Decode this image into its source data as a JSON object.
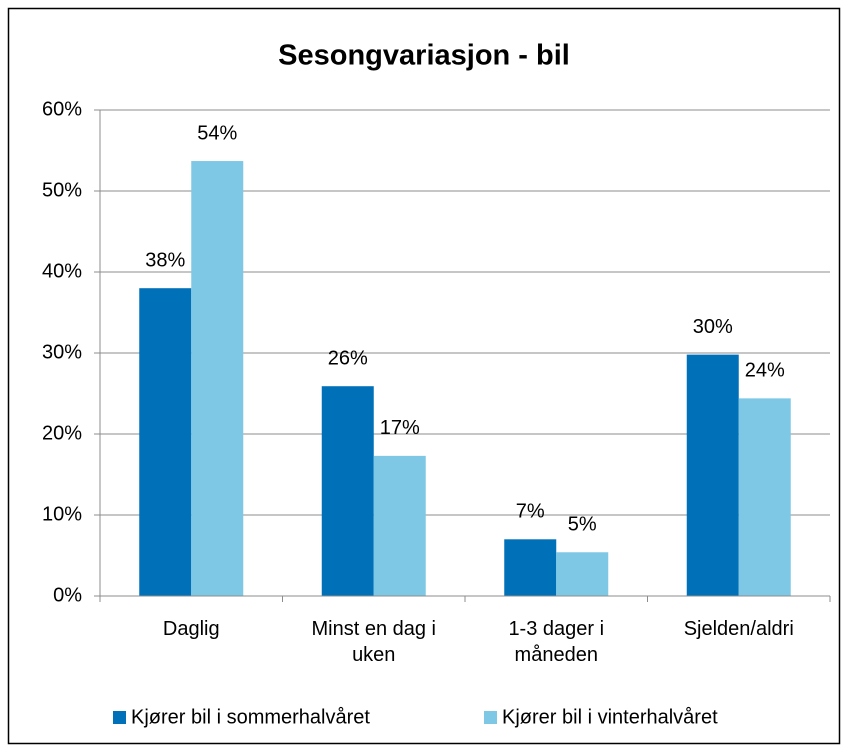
{
  "chart_data": {
    "type": "bar",
    "title": "Sesongvariasjon - bil",
    "categories": [
      "Daglig",
      "Minst en dag i uken",
      "1-3 dager i måneden",
      "Sjelden/aldri"
    ],
    "series": [
      {
        "name": "Kjører bil i sommerhalvåret",
        "color": "#0070b8",
        "values": [
          38.0,
          25.9,
          7.0,
          29.8
        ],
        "value_labels": [
          "38%",
          "26%",
          "7%",
          "30%"
        ]
      },
      {
        "name": "Kjører bil i vinterhalvåret",
        "color": "#7ec8e6",
        "values": [
          53.7,
          17.3,
          5.4,
          24.4
        ],
        "value_labels": [
          "54%",
          "17%",
          "5%",
          "24%"
        ]
      }
    ],
    "ylim": [
      0,
      60
    ],
    "yticks": [
      {
        "value": 0,
        "label": "0%"
      },
      {
        "value": 10,
        "label": "10%"
      },
      {
        "value": 20,
        "label": "20%"
      },
      {
        "value": 30,
        "label": "30%"
      },
      {
        "value": 40,
        "label": "40%"
      },
      {
        "value": 50,
        "label": "50%"
      },
      {
        "value": 60,
        "label": "60%"
      }
    ],
    "grid": true,
    "legend": "bottom"
  }
}
